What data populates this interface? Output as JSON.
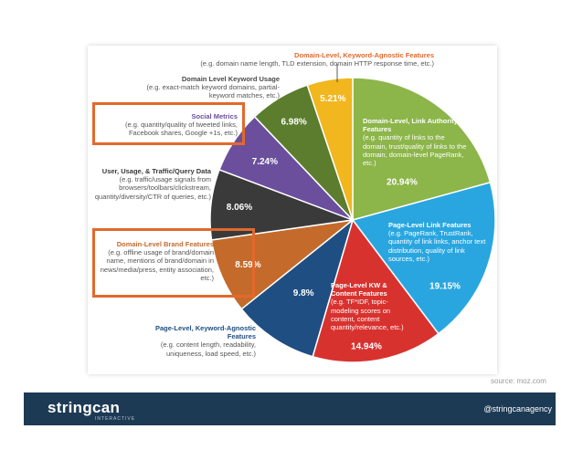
{
  "chart_data": {
    "type": "pie",
    "slices": [
      {
        "value": 20.94,
        "label": "20.94%",
        "title": "Domain-Level, Link Authority Features",
        "desc": "(e.g. quantity of links to the domain, trust/quality of links to the domain, domain-level PageRank, etc.)",
        "color": "#8cb54a"
      },
      {
        "value": 19.15,
        "label": "19.15%",
        "title": "Page-Level Link Features",
        "desc": "(e.g. PageRank, TrustRank, quantity of link links, anchor text distribution, quality of link sources, etc.)",
        "color": "#29a6e0"
      },
      {
        "value": 14.94,
        "label": "14.94%",
        "title": "Page-Level KW & Content Features",
        "desc": "(e.g. TF*IDF, topic-modeling scores on content, content quantity/relevance, etc.)",
        "color": "#d8322f"
      },
      {
        "value": 9.8,
        "label": "9.8%",
        "title": "Page-Level, Keyword-Agnostic Features",
        "desc": "(e.g. content length, readability, uniqueness, load speed, etc.)",
        "color": "#1f4e82"
      },
      {
        "value": 8.59,
        "label": "8.59%",
        "title": "Domain-Level Brand Features",
        "desc": "(e.g. offline usage of brand/domain name, mentions of brand/domain in news/media/press, entity association, etc.)",
        "color": "#c46b2c"
      },
      {
        "value": 8.06,
        "label": "8.06%",
        "title": "User, Usage, & Traffic/Query Data",
        "desc": "(e.g. traffic/usage signals from browsers/toolbars/clickstream, quantity/diversity/CTR of queries, etc.)",
        "color": "#3a3a3a"
      },
      {
        "value": 7.24,
        "label": "7.24%",
        "title": "Social Metrics",
        "desc": "(e.g. quantity/quality of tweeted links, Facebook shares, Google +1s, etc.)",
        "color": "#6b4f9d"
      },
      {
        "value": 6.98,
        "label": "6.98%",
        "title": "Domain Level Keyword Usage",
        "desc": "(e.g. exact-match keyword domains, partial-keyword matches, etc.)",
        "color": "#5b7d2d"
      },
      {
        "value": 5.21,
        "label": "5.21%",
        "title": "Domain-Level, Keyword-Agnostic Features",
        "desc": "(e.g. domain name length, TLD extension, domain HTTP response time, etc.)",
        "color": "#f2b61e"
      }
    ],
    "start_angle_deg": 0,
    "direction": "clockwise",
    "highlighted": [
      "Social Metrics",
      "Domain-Level Brand Features"
    ],
    "highlight_color": "#e2692b"
  },
  "watermark": "MOZ",
  "source": "source: moz.com",
  "footer": {
    "brand": "stringcan",
    "brand_sub": "INTERACTIVE",
    "handle": "@stringcanagency",
    "bg_color": "#1d3a55"
  }
}
